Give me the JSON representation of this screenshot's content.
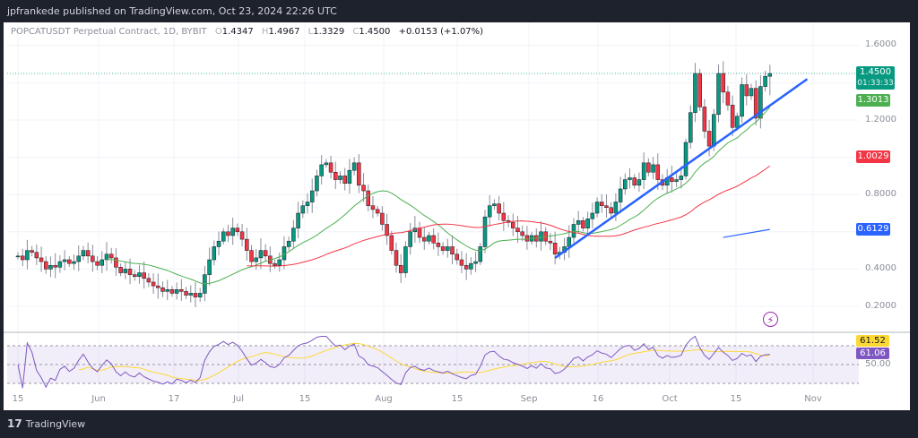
{
  "header": {
    "published": "jpfrankede published on TradingView.com, Oct 23, 2024 22:26 UTC"
  },
  "legend": {
    "symbol": "POPCATUSDT Perpetual Contract, 1D, BYBIT",
    "open_label": "O",
    "open": "1.4347",
    "high_label": "H",
    "high": "1.4967",
    "low_label": "L",
    "low": "1.3329",
    "close_label": "C",
    "close": "1.4500",
    "change": "+0.0153 (+1.07%)"
  },
  "price_axis": [
    "1.6000",
    "1.2000",
    "0.8000",
    "0.4000",
    "0.2000"
  ],
  "price_axis_values": [
    1.6,
    1.2,
    0.8,
    0.4,
    0.2
  ],
  "tags": {
    "last_price": "1.4500",
    "countdown": "01:33:33",
    "ma_fast": "1.3013",
    "ma_slow": "1.0029",
    "trendline_value": "0.6129"
  },
  "rsi": {
    "rsi_ma_value": "61.52",
    "rsi_value": "61.06",
    "mid_level": "50.00"
  },
  "date_axis": [
    "15",
    "Jun",
    "17",
    "Jul",
    "15",
    "Aug",
    "15",
    "Sep",
    "16",
    "Oct",
    "15",
    "Nov"
  ],
  "colors": {
    "up": "#089981",
    "down": "#f23645",
    "ma_fast": "#4caf50",
    "ma_slow": "#f23645",
    "trend": "#2962ff",
    "rsi": "#7e57c2",
    "rsi_ma": "#fdd835"
  },
  "icons": {
    "alert": "lightning-icon",
    "logo": "tradingview-logo"
  },
  "brand": "TradingView",
  "chart_data": {
    "type": "candlestick",
    "start_date": "2024-05-15",
    "interval": "1D",
    "closes": [
      0.47,
      0.45,
      0.5,
      0.49,
      0.46,
      0.44,
      0.4,
      0.42,
      0.41,
      0.44,
      0.45,
      0.43,
      0.44,
      0.47,
      0.5,
      0.47,
      0.44,
      0.42,
      0.45,
      0.48,
      0.46,
      0.41,
      0.38,
      0.4,
      0.37,
      0.36,
      0.38,
      0.35,
      0.33,
      0.31,
      0.3,
      0.28,
      0.29,
      0.27,
      0.29,
      0.28,
      0.26,
      0.27,
      0.25,
      0.27,
      0.37,
      0.45,
      0.52,
      0.55,
      0.6,
      0.58,
      0.62,
      0.6,
      0.56,
      0.5,
      0.44,
      0.46,
      0.5,
      0.47,
      0.43,
      0.42,
      0.45,
      0.52,
      0.55,
      0.62,
      0.7,
      0.74,
      0.76,
      0.82,
      0.9,
      0.96,
      0.97,
      0.92,
      0.88,
      0.9,
      0.86,
      0.93,
      0.97,
      0.85,
      0.82,
      0.74,
      0.72,
      0.7,
      0.64,
      0.58,
      0.5,
      0.42,
      0.38,
      0.52,
      0.6,
      0.62,
      0.57,
      0.55,
      0.58,
      0.54,
      0.52,
      0.5,
      0.52,
      0.48,
      0.45,
      0.42,
      0.4,
      0.43,
      0.44,
      0.52,
      0.68,
      0.74,
      0.75,
      0.7,
      0.66,
      0.65,
      0.62,
      0.6,
      0.58,
      0.55,
      0.58,
      0.55,
      0.6,
      0.55,
      0.54,
      0.48,
      0.49,
      0.52,
      0.57,
      0.64,
      0.66,
      0.62,
      0.67,
      0.7,
      0.76,
      0.74,
      0.73,
      0.7,
      0.76,
      0.83,
      0.88,
      0.89,
      0.85,
      0.88,
      0.97,
      0.92,
      0.96,
      0.88,
      0.85,
      0.89,
      0.87,
      0.88,
      0.9,
      1.08,
      1.24,
      1.45,
      1.27,
      1.14,
      1.06,
      1.23,
      1.45,
      1.35,
      1.28,
      1.16,
      1.22,
      1.39,
      1.33,
      1.37,
      1.21,
      1.38,
      1.4347,
      1.45
    ],
    "last_candle": {
      "open": 1.4347,
      "high": 1.4967,
      "low": 1.3329,
      "close": 1.45
    },
    "ylim": [
      0.1,
      1.65
    ],
    "ma_fast_period": 20,
    "ma_slow_period": 50,
    "trendlines": [
      {
        "from": {
          "date": "2024-09-07",
          "price": 0.46
        },
        "to": {
          "date": "2024-10-31",
          "price": 1.42
        }
      },
      {
        "from": {
          "date": "2024-10-13",
          "price": 0.57
        },
        "to": {
          "date": "2024-10-23",
          "price": 0.6129
        }
      }
    ],
    "rsi_levels": [
      70,
      50,
      30
    ]
  }
}
